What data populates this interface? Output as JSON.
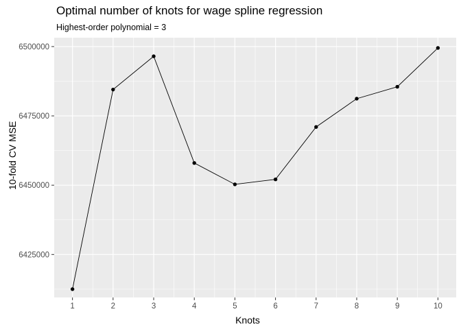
{
  "chart_data": {
    "type": "line",
    "title": "Optimal number of knots for wage spline regression",
    "subtitle": "Highest-order polynomial = 3",
    "xlabel": "Knots",
    "ylabel": "10-fold CV MSE",
    "x": [
      1,
      2,
      3,
      4,
      5,
      6,
      7,
      8,
      9,
      10
    ],
    "y": [
      6412500,
      6484500,
      6496500,
      6458000,
      6450300,
      6452100,
      6471000,
      6481200,
      6485500,
      6499500
    ],
    "xlim": [
      0.55,
      10.45
    ],
    "ylim": [
      6409500,
      6503200
    ],
    "x_ticks": [
      1,
      2,
      3,
      4,
      5,
      6,
      7,
      8,
      9,
      10
    ],
    "y_ticks": [
      6425000,
      6450000,
      6475000,
      6500000
    ],
    "x_tick_labels": [
      "1",
      "2",
      "3",
      "4",
      "5",
      "6",
      "7",
      "8",
      "9",
      "10"
    ],
    "y_tick_labels": [
      "6425000",
      "6450000",
      "6475000",
      "6500000"
    ],
    "grid": true,
    "legend": "none",
    "panel_color": "#ebebeb",
    "grid_color": "#ffffff",
    "line_color": "#000000",
    "point_color": "#000000"
  }
}
